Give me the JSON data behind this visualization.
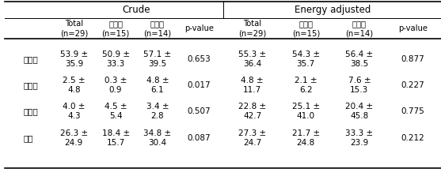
{
  "header_top_crude": "Crude",
  "header_top_ea": "Energy adjusted",
  "col_headers": [
    "Total\n(n=29)",
    "환자군\n(n=15)",
    "대조군\n(n=14)",
    "p-value",
    "Total\n(n=29)",
    "환자군\n(n=15)",
    "대조군\n(n=14)",
    "p-value"
  ],
  "row_labels": [
    "적색육",
    "가공육",
    "백색육",
    "생선"
  ],
  "rows": [
    [
      "53.9 ±\n35.9",
      "50.9 ±\n33.3",
      "57.1 ±\n39.5",
      "0.653",
      "55.3 ±\n36.4",
      "54.3 ±\n35.7",
      "56.4 ±\n38.5",
      "0.877"
    ],
    [
      "2.5 ±\n4.8",
      "0.3 ±\n0.9",
      "4.8 ±\n6.1",
      "0.017",
      "4.8 ±\n11.7",
      "2.1 ±\n6.2",
      "7.6 ±\n15.3",
      "0.227"
    ],
    [
      "4.0 ±\n4.3",
      "4.5 ±\n5.4",
      "3.4 ±\n2.8",
      "0.507",
      "22.8 ±\n42.7",
      "25.1 ±\n41.0",
      "20.4 ±\n45.8",
      "0.775"
    ],
    [
      "26.3 ±\n24.9",
      "18.4 ±\n15.7",
      "34.8 ±\n30.4",
      "0.087",
      "27.3 ±\n24.7",
      "21.7 ±\n24.8",
      "33.3 ±\n23.9",
      "0.212"
    ]
  ],
  "bg_color": "#ffffff",
  "text_color": "#000000",
  "line_color": "#000000"
}
